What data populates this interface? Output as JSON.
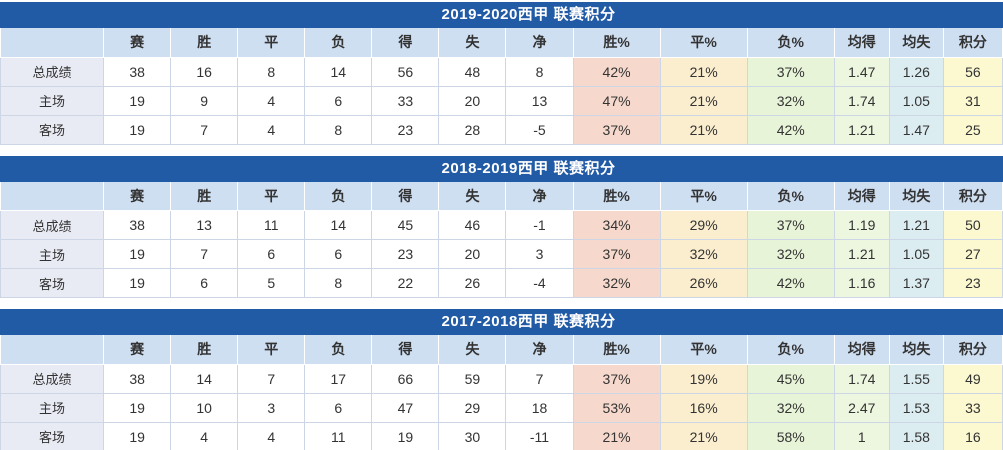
{
  "colors": {
    "title_bar": "#215aa5",
    "title_text": "#ffffff",
    "header_bg": "#cfdff2",
    "label_bg": "#e8ebf4",
    "win_pct_bg": "#f6d9cc",
    "draw_pct_bg": "#fbeecf",
    "loss_pct_bg": "#e8f4d8",
    "avg_for_bg": "#edf6df",
    "avg_against_bg": "#dcedf2",
    "points_bg": "#fcf9d0",
    "body_bg": "#ffffff",
    "cell_border": "#ccd6e4",
    "text": "#333333"
  },
  "chart_data": [
    {
      "type": "table",
      "title": "2019-2020西甲 联赛积分",
      "columns": [
        "",
        "赛",
        "胜",
        "平",
        "负",
        "得",
        "失",
        "净",
        "胜%",
        "平%",
        "负%",
        "均得",
        "均失",
        "积分"
      ],
      "rows": [
        [
          "总成绩",
          "38",
          "16",
          "8",
          "14",
          "56",
          "48",
          "8",
          "42%",
          "21%",
          "37%",
          "1.47",
          "1.26",
          "56"
        ],
        [
          "主场",
          "19",
          "9",
          "4",
          "6",
          "33",
          "20",
          "13",
          "47%",
          "21%",
          "32%",
          "1.74",
          "1.05",
          "31"
        ],
        [
          "客场",
          "19",
          "7",
          "4",
          "8",
          "23",
          "28",
          "-5",
          "37%",
          "21%",
          "42%",
          "1.21",
          "1.47",
          "25"
        ]
      ]
    },
    {
      "type": "table",
      "title": "2018-2019西甲 联赛积分",
      "columns": [
        "",
        "赛",
        "胜",
        "平",
        "负",
        "得",
        "失",
        "净",
        "胜%",
        "平%",
        "负%",
        "均得",
        "均失",
        "积分"
      ],
      "rows": [
        [
          "总成绩",
          "38",
          "13",
          "11",
          "14",
          "45",
          "46",
          "-1",
          "34%",
          "29%",
          "37%",
          "1.19",
          "1.21",
          "50"
        ],
        [
          "主场",
          "19",
          "7",
          "6",
          "6",
          "23",
          "20",
          "3",
          "37%",
          "32%",
          "32%",
          "1.21",
          "1.05",
          "27"
        ],
        [
          "客场",
          "19",
          "6",
          "5",
          "8",
          "22",
          "26",
          "-4",
          "32%",
          "26%",
          "42%",
          "1.16",
          "1.37",
          "23"
        ]
      ]
    },
    {
      "type": "table",
      "title": "2017-2018西甲 联赛积分",
      "columns": [
        "",
        "赛",
        "胜",
        "平",
        "负",
        "得",
        "失",
        "净",
        "胜%",
        "平%",
        "负%",
        "均得",
        "均失",
        "积分"
      ],
      "rows": [
        [
          "总成绩",
          "38",
          "14",
          "7",
          "17",
          "66",
          "59",
          "7",
          "37%",
          "19%",
          "45%",
          "1.74",
          "1.55",
          "49"
        ],
        [
          "主场",
          "19",
          "10",
          "3",
          "6",
          "47",
          "29",
          "18",
          "53%",
          "16%",
          "32%",
          "2.47",
          "1.53",
          "33"
        ],
        [
          "客场",
          "19",
          "4",
          "4",
          "11",
          "19",
          "30",
          "-11",
          "21%",
          "21%",
          "58%",
          "1",
          "1.58",
          "16"
        ]
      ]
    }
  ]
}
